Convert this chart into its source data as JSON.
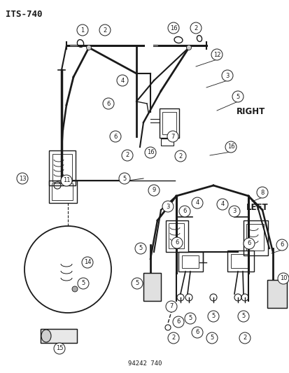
{
  "title": "ITS-740",
  "part_number": "94242 740",
  "bg": "#ffffff",
  "lc": "#1a1a1a",
  "right_label": "RIGHT",
  "left_label": "LEFT",
  "figsize": [
    4.14,
    5.33
  ],
  "dpi": 100
}
